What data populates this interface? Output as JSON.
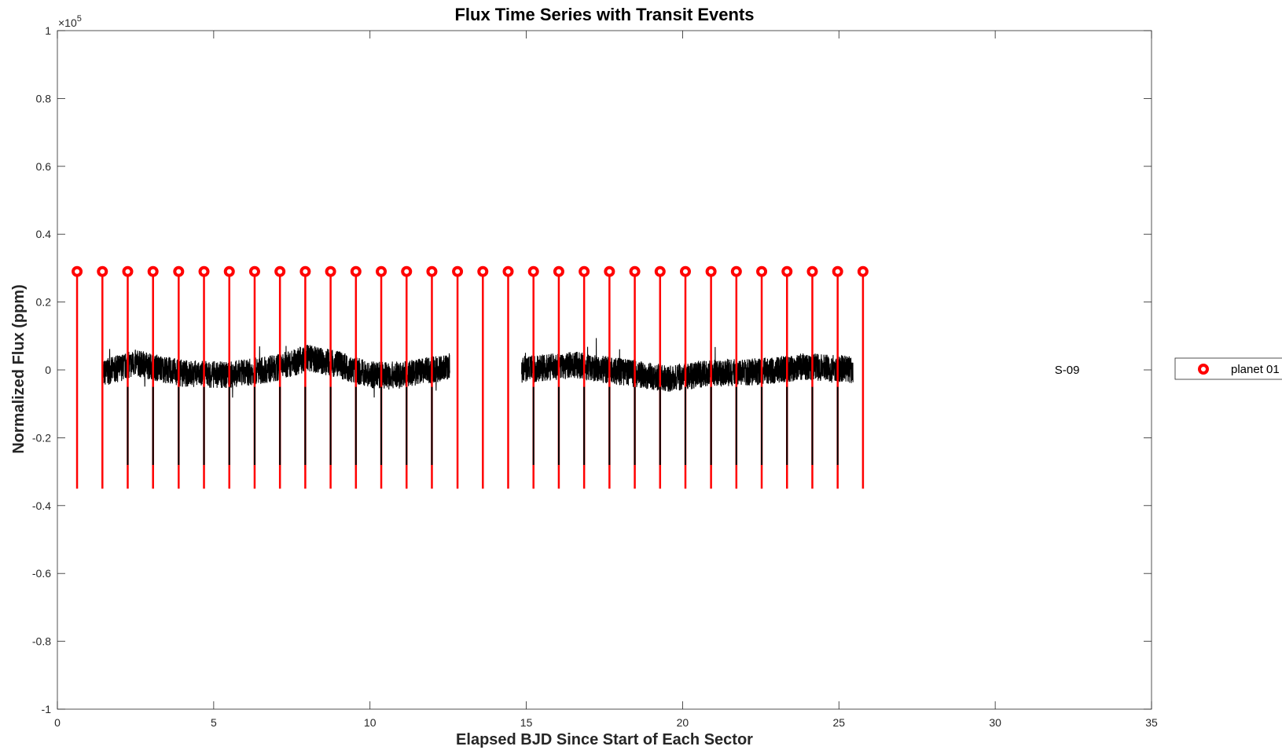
{
  "chart_data": {
    "type": "line",
    "title": "Flux Time Series with Transit Events",
    "xlabel": "Elapsed BJD Since Start of Each Sector",
    "ylabel": "Normalized Flux (ppm)",
    "xlim": [
      0,
      35
    ],
    "ylim": [
      -100000,
      100000
    ],
    "y_exponent_label": "×10",
    "y_exponent_power": "5",
    "x_ticks": [
      0,
      5,
      10,
      15,
      20,
      25,
      30,
      35
    ],
    "x_tick_labels": [
      "0",
      "5",
      "10",
      "15",
      "20",
      "25",
      "30",
      "35"
    ],
    "y_ticks": [
      -100000,
      -80000,
      -60000,
      -40000,
      -20000,
      0,
      20000,
      40000,
      60000,
      80000,
      100000
    ],
    "y_tick_labels": [
      "-1",
      "-0.8",
      "-0.6",
      "-0.4",
      "-0.2",
      "0",
      "0.2",
      "0.4",
      "0.6",
      "0.8",
      "1"
    ],
    "grid": false,
    "annotation": {
      "text": "S-09",
      "x": 32.3,
      "y": 0
    },
    "legend": {
      "position": "outside-right",
      "entries": [
        "planet 01"
      ]
    },
    "series": [
      {
        "name": "flux",
        "color": "#000000",
        "segments": [
          {
            "x_start": 1.45,
            "x_end": 12.55,
            "trend": [
              [
                1.45,
                -1000
              ],
              [
                2.5,
                2000
              ],
              [
                4,
                -1000
              ],
              [
                5.5,
                -1500
              ],
              [
                7,
                500
              ],
              [
                8,
                3500
              ],
              [
                9,
                1500
              ],
              [
                10,
                -1500
              ],
              [
                11,
                -1500
              ],
              [
                12.55,
                1000
              ]
            ]
          },
          {
            "x_start": 14.85,
            "x_end": 25.45,
            "trend": [
              [
                14.85,
                0
              ],
              [
                16.5,
                1500
              ],
              [
                18,
                -500
              ],
              [
                19.5,
                -2500
              ],
              [
                21,
                -1000
              ],
              [
                22.5,
                -500
              ],
              [
                24,
                1000
              ],
              [
                25.45,
                0
              ]
            ]
          }
        ],
        "noise_ppm": 4000,
        "transit_depth_ppm": -29500
      },
      {
        "name": "planet 01",
        "color": "#ff0000",
        "marker": "circle",
        "marker_y": 29000,
        "stem_bottom_y": -35000,
        "x": [
          0.63,
          1.44,
          2.25,
          3.06,
          3.88,
          4.69,
          5.5,
          6.31,
          7.12,
          7.93,
          8.74,
          9.55,
          10.36,
          11.17,
          11.98,
          12.8,
          13.61,
          14.42,
          15.23,
          16.04,
          16.85,
          17.66,
          18.47,
          19.28,
          20.09,
          20.91,
          21.72,
          22.53,
          23.34,
          24.15,
          24.96,
          25.77
        ]
      }
    ]
  }
}
